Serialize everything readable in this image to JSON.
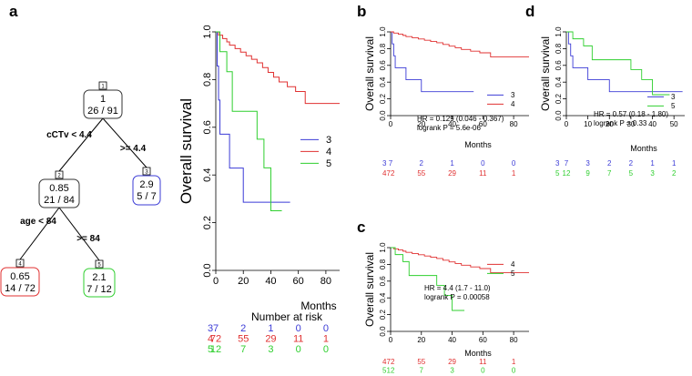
{
  "panel_labels": {
    "a": "a",
    "b": "b",
    "c": "c",
    "d": "d"
  },
  "colors": {
    "g3": "#3b3bd6",
    "g4": "#e03030",
    "g5": "#2fcf2f",
    "axis": "#333333"
  },
  "tree": {
    "nodes": [
      {
        "id": "1",
        "value": "1",
        "counts": "26 / 91",
        "color": "#333333"
      },
      {
        "id": "2",
        "value": "0.85",
        "counts": "21 / 84",
        "color": "#333333"
      },
      {
        "id": "3",
        "value": "2.9",
        "counts": "5 / 7",
        "color": "#3b3bd6"
      },
      {
        "id": "4",
        "value": "0.65",
        "counts": "14 / 72",
        "color": "#e03030"
      },
      {
        "id": "5",
        "value": "2.1",
        "counts": "7 / 12",
        "color": "#2fcf2f"
      }
    ],
    "splits": {
      "root_left": "cCTv < 4.4",
      "root_right": ">= 4.4",
      "n2_left": "age < 84",
      "n2_right": ">= 84"
    }
  },
  "chart_data": [
    {
      "type": "line",
      "panel": "a",
      "ylabel": "Overall survival",
      "xlabel": "Months",
      "xlim": [
        0,
        90
      ],
      "ylim": [
        0,
        1
      ],
      "xticks": [
        0,
        20,
        40,
        60,
        80
      ],
      "yticks": [
        "0.0",
        "0.2",
        "0.4",
        "0.6",
        "0.8",
        "1.0"
      ],
      "legend": [
        "3",
        "4",
        "5"
      ],
      "series": [
        {
          "name": "3",
          "x": [
            0,
            1,
            2,
            3,
            5,
            10,
            20,
            54
          ],
          "y": [
            1.0,
            0.857,
            0.714,
            0.571,
            0.571,
            0.429,
            0.286,
            0.286
          ]
        },
        {
          "name": "4",
          "x": [
            0,
            2,
            5,
            8,
            10,
            14,
            18,
            22,
            26,
            30,
            34,
            38,
            42,
            46,
            52,
            58,
            65,
            90
          ],
          "y": [
            1.0,
            0.986,
            0.972,
            0.958,
            0.944,
            0.93,
            0.915,
            0.9,
            0.885,
            0.87,
            0.85,
            0.83,
            0.81,
            0.79,
            0.77,
            0.75,
            0.7,
            0.7
          ]
        },
        {
          "name": "5",
          "x": [
            0,
            3,
            8,
            12,
            25,
            30,
            35,
            40,
            48
          ],
          "y": [
            1.0,
            0.917,
            0.833,
            0.667,
            0.667,
            0.55,
            0.43,
            0.25,
            0.25
          ]
        }
      ],
      "risk_table": {
        "title": "Number at risk",
        "rows": [
          {
            "group": "3",
            "values": [
              "7",
              "2",
              "1",
              "0",
              "0"
            ]
          },
          {
            "group": "4",
            "values": [
              "72",
              "55",
              "29",
              "11",
              "1"
            ]
          },
          {
            "group": "5",
            "values": [
              "12",
              "7",
              "3",
              "0",
              "0"
            ]
          }
        ]
      }
    },
    {
      "type": "line",
      "panel": "b",
      "ylabel": "Overall survival",
      "xlabel": "Months",
      "xlim": [
        0,
        90
      ],
      "ylim": [
        0,
        1
      ],
      "xticks": [
        0,
        20,
        40,
        60,
        80
      ],
      "yticks": [
        "0.0",
        "0.2",
        "0.4",
        "0.6",
        "0.8",
        "1.0"
      ],
      "legend": [
        "3",
        "4"
      ],
      "annotation": {
        "hr": "HR = 0.129 (0.046 - 0.367)",
        "p": "logrank P = 5.6e-06"
      },
      "series": [
        {
          "name": "3",
          "x": [
            0,
            1,
            2,
            3,
            5,
            10,
            20,
            54
          ],
          "y": [
            1.0,
            0.857,
            0.714,
            0.571,
            0.571,
            0.429,
            0.286,
            0.286
          ]
        },
        {
          "name": "4",
          "x": [
            0,
            2,
            5,
            8,
            10,
            14,
            18,
            22,
            26,
            30,
            34,
            38,
            42,
            46,
            52,
            58,
            65,
            90
          ],
          "y": [
            1.0,
            0.986,
            0.972,
            0.958,
            0.944,
            0.93,
            0.915,
            0.9,
            0.885,
            0.87,
            0.85,
            0.83,
            0.81,
            0.79,
            0.77,
            0.75,
            0.7,
            0.7
          ]
        }
      ],
      "risk_table": {
        "rows": [
          {
            "group": "3",
            "values": [
              "7",
              "2",
              "1",
              "0",
              "0"
            ]
          },
          {
            "group": "4",
            "values": [
              "72",
              "55",
              "29",
              "11",
              "1"
            ]
          }
        ]
      }
    },
    {
      "type": "line",
      "panel": "c",
      "ylabel": "Overall survival",
      "xlabel": "Months",
      "xlim": [
        0,
        90
      ],
      "ylim": [
        0,
        1
      ],
      "xticks": [
        0,
        20,
        40,
        60,
        80
      ],
      "yticks": [
        "0.0",
        "0.2",
        "0.4",
        "0.6",
        "0.8",
        "1.0"
      ],
      "legend": [
        "4",
        "5"
      ],
      "annotation": {
        "hr": "HR = 4.4 (1.7 - 11.0)",
        "p": "logrank P = 0.00058"
      },
      "series": [
        {
          "name": "4",
          "x": [
            0,
            2,
            5,
            8,
            10,
            14,
            18,
            22,
            26,
            30,
            34,
            38,
            42,
            46,
            52,
            58,
            65,
            90
          ],
          "y": [
            1.0,
            0.986,
            0.972,
            0.958,
            0.944,
            0.93,
            0.915,
            0.9,
            0.885,
            0.87,
            0.85,
            0.83,
            0.81,
            0.79,
            0.77,
            0.75,
            0.7,
            0.7
          ]
        },
        {
          "name": "5",
          "x": [
            0,
            3,
            8,
            12,
            25,
            30,
            35,
            40,
            48
          ],
          "y": [
            1.0,
            0.917,
            0.833,
            0.667,
            0.667,
            0.55,
            0.43,
            0.25,
            0.25
          ]
        }
      ],
      "risk_table": {
        "rows": [
          {
            "group": "4",
            "values": [
              "72",
              "55",
              "29",
              "11",
              "1"
            ]
          },
          {
            "group": "5",
            "values": [
              "12",
              "7",
              "3",
              "0",
              "0"
            ]
          }
        ]
      }
    },
    {
      "type": "line",
      "panel": "d",
      "ylabel": "Overall survival",
      "xlabel": "Months",
      "xlim": [
        0,
        55
      ],
      "ylim": [
        0,
        1
      ],
      "xticks": [
        0,
        10,
        20,
        30,
        40,
        50
      ],
      "yticks": [
        "0.0",
        "0.2",
        "0.4",
        "0.6",
        "0.8",
        "1.0"
      ],
      "legend": [
        "3",
        "5"
      ],
      "annotation": {
        "hr": "HR = 0.57 (0.18 - 1.80)",
        "p": "logrank P = 0.33"
      },
      "series": [
        {
          "name": "3",
          "x": [
            0,
            1,
            2,
            3,
            5,
            10,
            20,
            54
          ],
          "y": [
            1.0,
            0.857,
            0.714,
            0.571,
            0.571,
            0.429,
            0.286,
            0.286
          ]
        },
        {
          "name": "5",
          "x": [
            0,
            3,
            8,
            12,
            25,
            30,
            35,
            40,
            48
          ],
          "y": [
            1.0,
            0.917,
            0.833,
            0.667,
            0.667,
            0.55,
            0.43,
            0.25,
            0.25
          ]
        }
      ],
      "risk_table": {
        "rows": [
          {
            "group": "3",
            "values": [
              "7",
              "3",
              "2",
              "2",
              "1",
              "1"
            ]
          },
          {
            "group": "5",
            "values": [
              "12",
              "9",
              "7",
              "5",
              "3",
              "2"
            ]
          }
        ]
      }
    }
  ]
}
